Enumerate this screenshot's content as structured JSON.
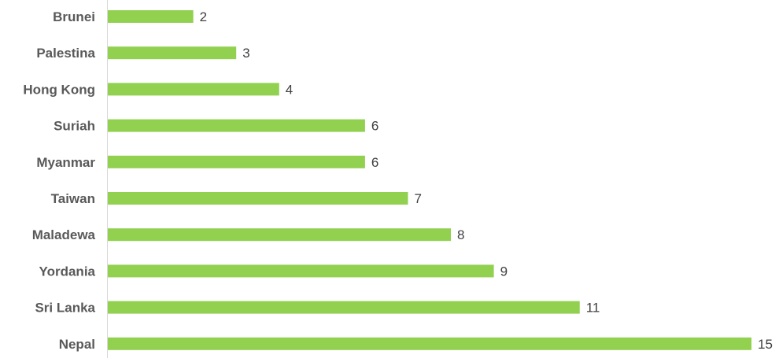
{
  "chart_data": {
    "type": "bar",
    "orientation": "horizontal",
    "categories": [
      "Brunei",
      "Palestina",
      "Hong Kong",
      "Suriah",
      "Myanmar",
      "Taiwan",
      "Maladewa",
      "Yordania",
      "Sri Lanka",
      "Nepal"
    ],
    "values": [
      2,
      3,
      4,
      6,
      6,
      7,
      8,
      9,
      11,
      15
    ],
    "title": "",
    "xlabel": "",
    "ylabel": "",
    "xlim": [
      0,
      15
    ],
    "grid": false,
    "legend": "none",
    "data_labels": true,
    "colors": {
      "bar": "#92D050",
      "axis": "#D9D9D9",
      "category_text": "#595959",
      "value_text": "#404040"
    }
  }
}
